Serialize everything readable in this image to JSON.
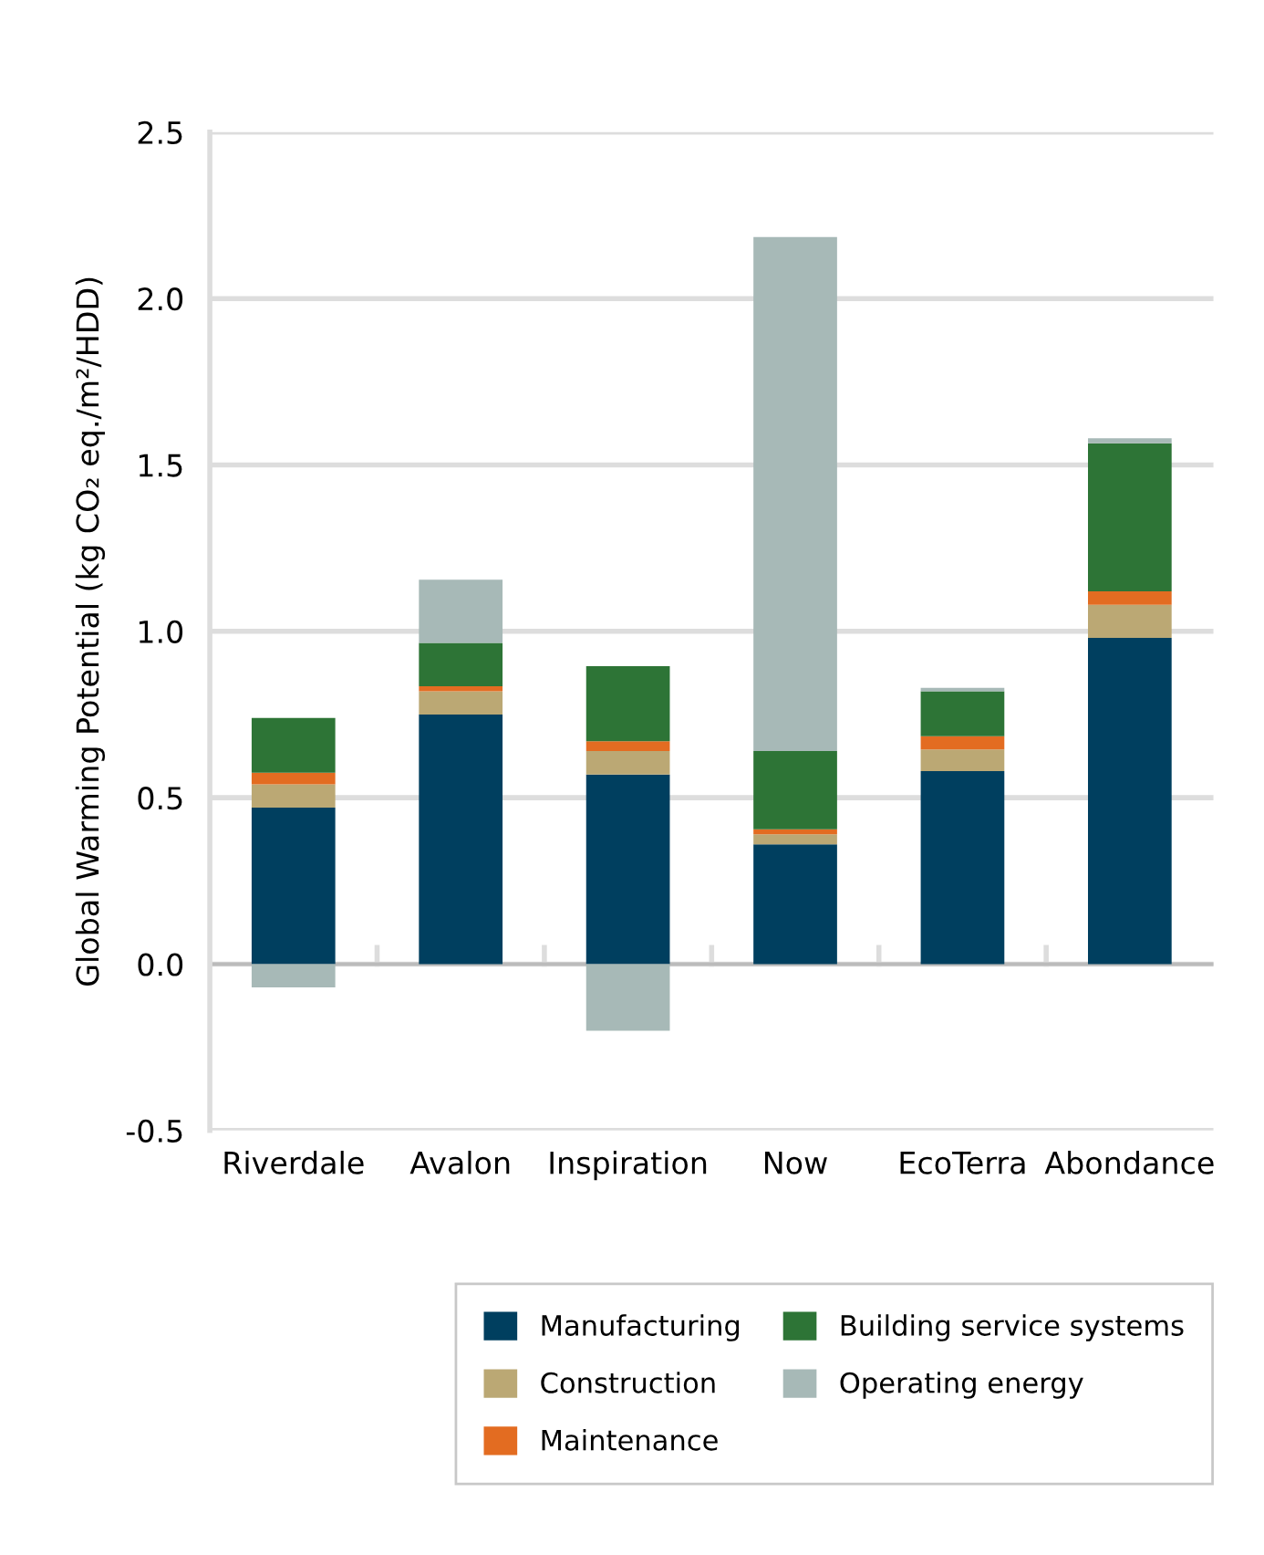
{
  "chart_data": {
    "type": "bar",
    "stacked": true,
    "ylabel": "Global Warming Potential (kg CO₂ eq./m²/HDD)",
    "categories": [
      "Riverdale",
      "Avalon",
      "Inspiration",
      "Now",
      "EcoTerra",
      "Abondance"
    ],
    "series": [
      {
        "name": "Manufacturing",
        "color": "#003f5f",
        "values": [
          0.47,
          0.75,
          0.57,
          0.36,
          0.58,
          0.98
        ]
      },
      {
        "name": "Construction",
        "color": "#bba874",
        "values": [
          0.07,
          0.07,
          0.07,
          0.03,
          0.065,
          0.1
        ]
      },
      {
        "name": "Maintenance",
        "color": "#e36c21",
        "values": [
          0.035,
          0.015,
          0.03,
          0.015,
          0.04,
          0.04
        ]
      },
      {
        "name": "Building service systems",
        "color": "#2d7436",
        "values": [
          0.165,
          0.13,
          0.225,
          0.235,
          0.135,
          0.445
        ]
      },
      {
        "name": "Operating energy",
        "color": "#a7b9b7",
        "values": [
          -0.07,
          0.19,
          -0.2,
          1.545,
          0.01,
          0.015
        ]
      }
    ],
    "ylim": [
      -0.5,
      2.5
    ],
    "yticks": [
      {
        "value": -0.5,
        "label": "-0.5"
      },
      {
        "value": 0,
        "label": "0.0"
      },
      {
        "value": 0.5,
        "label": "0.5"
      },
      {
        "value": 1,
        "label": "1.0"
      },
      {
        "value": 1.5,
        "label": "1.5"
      },
      {
        "value": 2,
        "label": "2.0"
      },
      {
        "value": 2.5,
        "label": "2.5"
      }
    ],
    "grid": "y",
    "legend": "bottom"
  }
}
